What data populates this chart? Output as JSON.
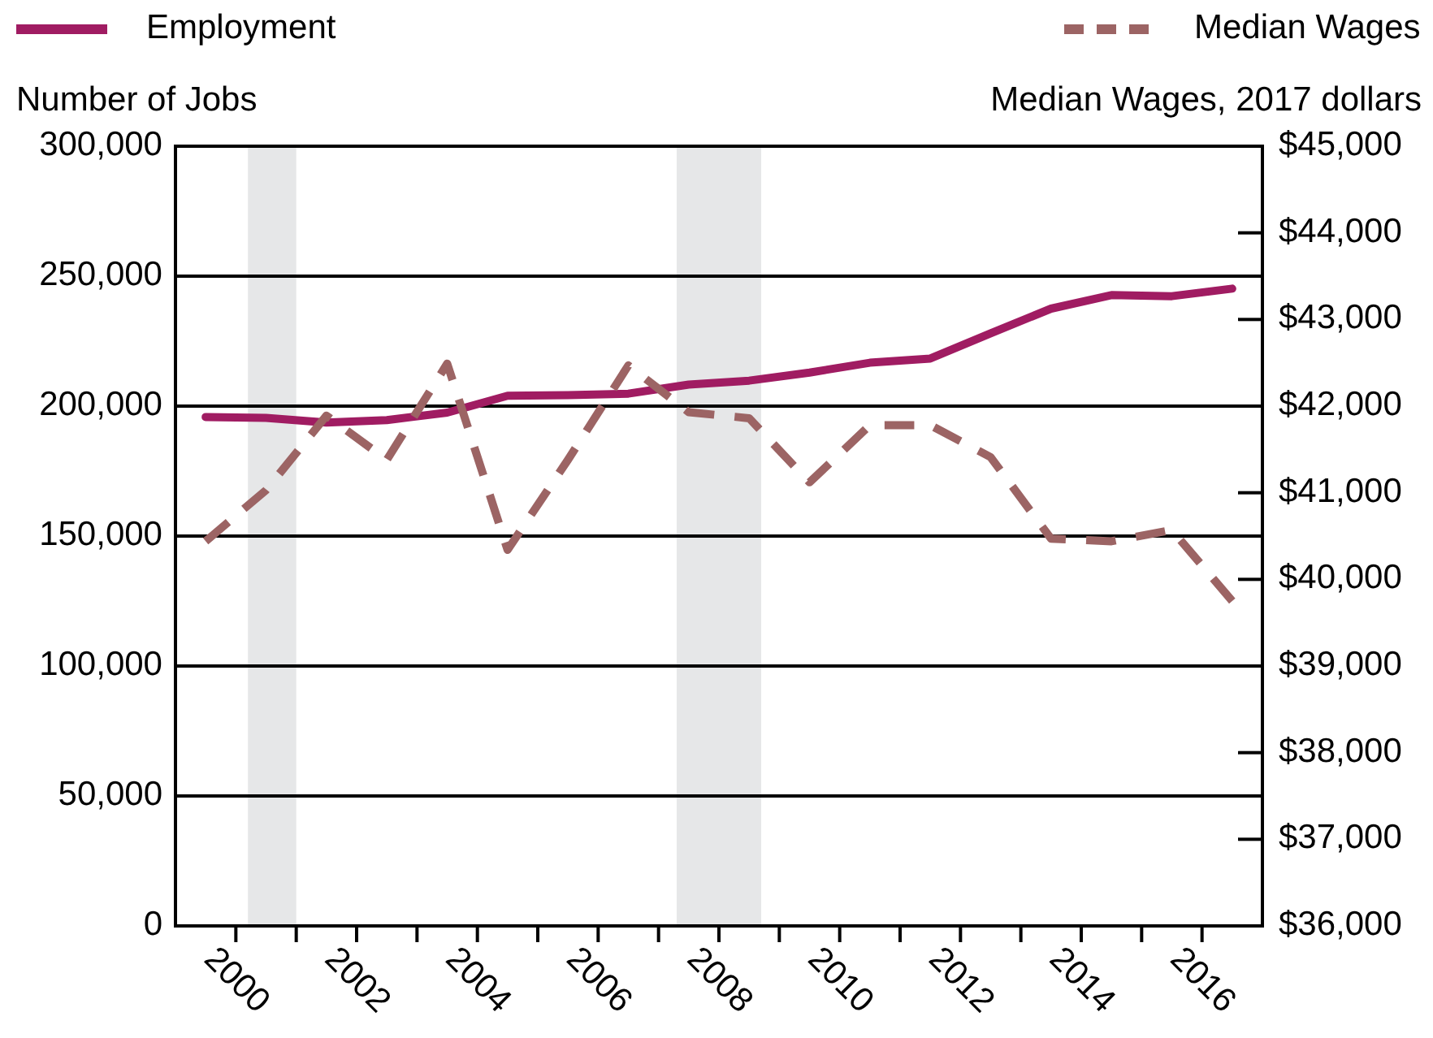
{
  "chart_data": {
    "type": "line",
    "ylabel": "Number of Jobs",
    "y2label": "Median Wages, 2017 dollars",
    "x": [
      1999.5,
      2000.5,
      2001.5,
      2002.5,
      2003.5,
      2004.5,
      2005.5,
      2006.5,
      2007.5,
      2008.5,
      2009.5,
      2010.5,
      2011.5,
      2012.5,
      2013.5,
      2014.5,
      2015.5,
      2016.5
    ],
    "series": [
      {
        "name": "Employment",
        "color": "#a01c62",
        "line_style": "solid",
        "values": [
          195800,
          195500,
          193700,
          194600,
          197500,
          204000,
          204200,
          204800,
          208300,
          209800,
          212900,
          216700,
          218300,
          228000,
          237500,
          242700,
          242300,
          245200
        ]
      },
      {
        "name": "Median Wages",
        "color": "#9c6464",
        "line_style": "dashed",
        "axis": "y2",
        "values": [
          40440,
          41030,
          41890,
          41380,
          42490,
          40340,
          41380,
          42470,
          41930,
          41860,
          41120,
          41780,
          41780,
          41410,
          40470,
          40440,
          40570,
          39750
        ]
      }
    ],
    "xlim": [
      1999,
      2017
    ],
    "xticks": [
      {
        "value": 2000,
        "label": "2000"
      },
      {
        "value": 2001,
        "label": null
      },
      {
        "value": 2002,
        "label": "2002"
      },
      {
        "value": 2003,
        "label": null
      },
      {
        "value": 2004,
        "label": "2004"
      },
      {
        "value": 2005,
        "label": null
      },
      {
        "value": 2006,
        "label": "2006"
      },
      {
        "value": 2007,
        "label": null
      },
      {
        "value": 2008,
        "label": "2008"
      },
      {
        "value": 2009,
        "label": null
      },
      {
        "value": 2010,
        "label": "2010"
      },
      {
        "value": 2011,
        "label": null
      },
      {
        "value": 2012,
        "label": "2012"
      },
      {
        "value": 2013,
        "label": null
      },
      {
        "value": 2014,
        "label": "2014"
      },
      {
        "value": 2015,
        "label": null
      },
      {
        "value": 2016,
        "label": "2016"
      }
    ],
    "ylim": [
      0,
      300000
    ],
    "yticks": [
      {
        "value": 0,
        "label": "0"
      },
      {
        "value": 50000,
        "label": "50,000"
      },
      {
        "value": 100000,
        "label": "100,000"
      },
      {
        "value": 150000,
        "label": "150,000"
      },
      {
        "value": 200000,
        "label": "200,000"
      },
      {
        "value": 250000,
        "label": "250,000"
      },
      {
        "value": 300000,
        "label": "300,000"
      }
    ],
    "y2lim": [
      36000,
      45000
    ],
    "y2ticks": [
      {
        "value": 36000,
        "label": "$36,000"
      },
      {
        "value": 37000,
        "label": "$37,000"
      },
      {
        "value": 38000,
        "label": "$38,000"
      },
      {
        "value": 39000,
        "label": "$39,000"
      },
      {
        "value": 40000,
        "label": "$40,000"
      },
      {
        "value": 41000,
        "label": "$41,000"
      },
      {
        "value": 42000,
        "label": "$42,000"
      },
      {
        "value": 43000,
        "label": "$43,000"
      },
      {
        "value": 44000,
        "label": "$44,000"
      },
      {
        "value": 45000,
        "label": "$45,000"
      }
    ],
    "bands": [
      {
        "axis": "x",
        "from": 2000.2,
        "to": 2001.0,
        "color": "#e6e7e8"
      },
      {
        "axis": "x",
        "from": 2007.3,
        "to": 2008.7,
        "color": "#e6e7e8"
      }
    ],
    "grid": "y",
    "legend": "top",
    "marker": "none"
  }
}
